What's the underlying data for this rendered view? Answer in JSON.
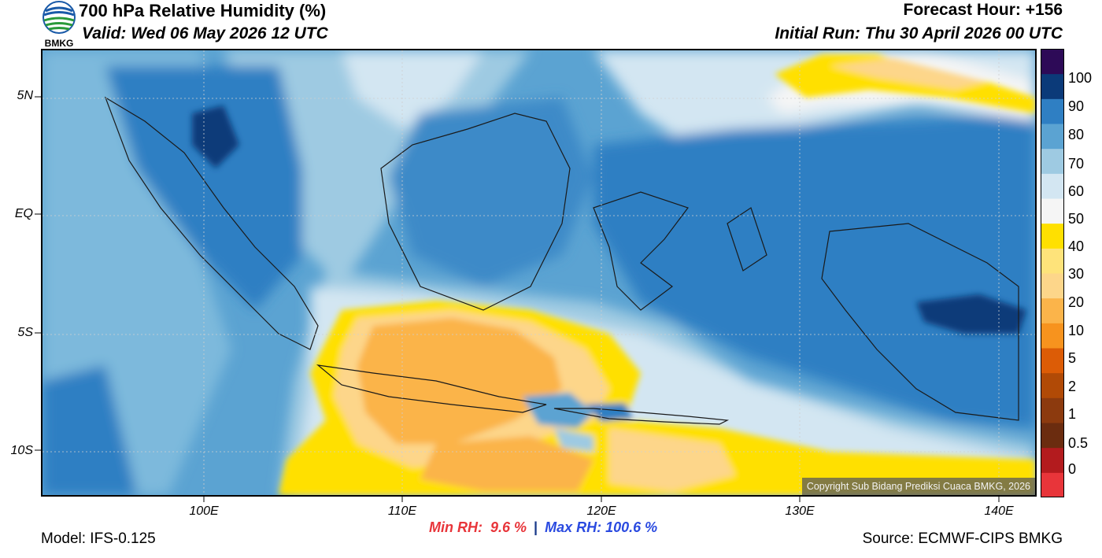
{
  "header": {
    "title": "700 hPa Relative Humidity (%)",
    "valid": "Valid: Wed 06 May 2026 12 UTC",
    "forecast_hour": "Forecast Hour: +156",
    "initial_run": "Initial Run: Thu 30 April 2026 00 UTC",
    "logo_text": "BMKG"
  },
  "map": {
    "lat_ticks": [
      "5N",
      "EQ",
      "5S",
      "10S"
    ],
    "lon_ticks": [
      "100E",
      "110E",
      "120E",
      "130E",
      "140E"
    ],
    "lat_range": [
      -12,
      7
    ],
    "lon_range": [
      92,
      142
    ],
    "copyright": "Copyright Sub Bidang Prediksi Cuaca BMKG, 2026"
  },
  "colorbar": {
    "colors": [
      "#e8353a",
      "#b31b1e",
      "#6b2c0f",
      "#8c3a0e",
      "#b14a06",
      "#dc5c06",
      "#f7931e",
      "#fbb44a",
      "#fdd68a",
      "#fee37a",
      "#ffe000",
      "#f5f5f5",
      "#d3e6f2",
      "#9ecae2",
      "#5ba3d2",
      "#2f7fc3",
      "#0b3a79",
      "#2d0a57"
    ],
    "labels": [
      "0",
      "0.5",
      "1",
      "2",
      "5",
      "10",
      "20",
      "30",
      "40",
      "50",
      "60",
      "70",
      "80",
      "90",
      "100"
    ]
  },
  "stats": {
    "min_label": "Min RH:",
    "min_value": "9.6 %",
    "separator": "|",
    "max_label": "Max RH:",
    "max_value": "100.6 %"
  },
  "footer": {
    "model": "Model: IFS-0.125",
    "source": "Source: ECMWF-CIPS BMKG"
  }
}
